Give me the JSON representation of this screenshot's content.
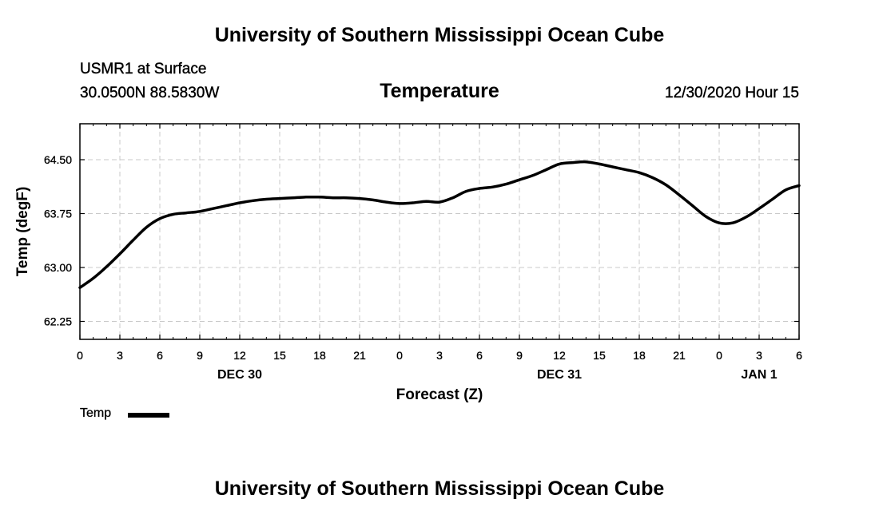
{
  "header": {
    "top_title": "University of Southern Mississippi Ocean Cube",
    "station": "USMR1 at Surface",
    "coords": "30.0500N 88.5830W",
    "variable_title": "Temperature",
    "timestamp": "12/30/2020 Hour 15"
  },
  "footer": {
    "bottom_title": "University of Southern Mississippi Ocean Cube"
  },
  "legend": {
    "label": "Temp"
  },
  "colors": {
    "line": "#000000",
    "grid": "#c8c8c8",
    "axis": "#000000"
  },
  "chart_data": {
    "type": "line",
    "title": "Temperature",
    "xlabel": "Forecast (Z)",
    "ylabel": "Temp (degF)",
    "xlim": [
      0,
      54
    ],
    "ylim": [
      62.0,
      65.0
    ],
    "x_ticks": [
      0,
      3,
      6,
      9,
      12,
      15,
      18,
      21,
      24,
      27,
      30,
      33,
      36,
      39,
      42,
      45,
      48,
      51,
      54
    ],
    "x_tick_labels": [
      "0",
      "3",
      "6",
      "9",
      "12",
      "15",
      "18",
      "21",
      "0",
      "3",
      "6",
      "9",
      "12",
      "15",
      "18",
      "21",
      "0",
      "3",
      "6"
    ],
    "y_ticks": [
      62.25,
      63.0,
      63.75,
      64.5
    ],
    "y_tick_labels": [
      "62.25",
      "63.00",
      "63.75",
      "64.50"
    ],
    "date_labels": [
      {
        "label": "DEC 30",
        "x": 12
      },
      {
        "label": "DEC 31",
        "x": 36
      },
      {
        "label": "JAN 1",
        "x": 51
      }
    ],
    "grid": true,
    "series": [
      {
        "name": "Temp",
        "x": [
          0,
          1,
          2,
          3,
          4,
          5,
          6,
          7,
          8,
          9,
          10,
          11,
          12,
          13,
          14,
          15,
          16,
          17,
          18,
          19,
          20,
          21,
          22,
          23,
          24,
          25,
          26,
          27,
          28,
          29,
          30,
          31,
          32,
          33,
          34,
          35,
          36,
          37,
          38,
          39,
          40,
          41,
          42,
          43,
          44,
          45,
          46,
          47,
          48,
          49,
          50,
          51,
          52,
          53,
          54
        ],
        "values": [
          62.72,
          62.85,
          63.01,
          63.19,
          63.38,
          63.56,
          63.68,
          63.74,
          63.76,
          63.78,
          63.82,
          63.86,
          63.9,
          63.93,
          63.95,
          63.96,
          63.97,
          63.98,
          63.98,
          63.97,
          63.97,
          63.96,
          63.94,
          63.91,
          63.89,
          63.9,
          63.92,
          63.91,
          63.97,
          64.06,
          64.1,
          64.12,
          64.16,
          64.22,
          64.28,
          64.36,
          64.44,
          64.46,
          64.47,
          64.44,
          64.4,
          64.36,
          64.32,
          64.25,
          64.15,
          64.01,
          63.86,
          63.71,
          63.62,
          63.62,
          63.7,
          63.82,
          63.95,
          64.08,
          64.14
        ]
      }
    ]
  }
}
